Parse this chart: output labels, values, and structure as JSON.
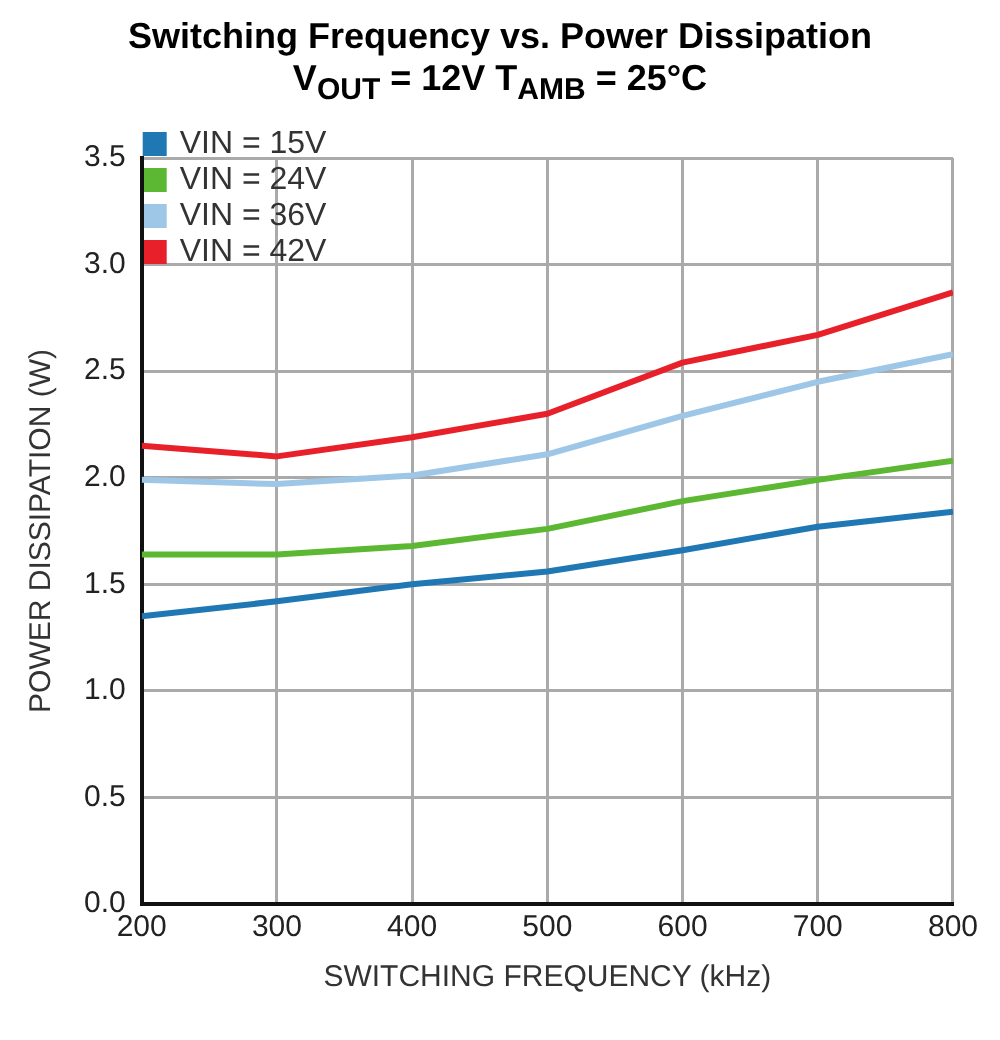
{
  "chart_data": {
    "type": "line",
    "title": "Switching Frequency vs. Power Dissipation",
    "subtitle": "V$_{OUT}$ = 12V T$_{AMB}$ = 25°C",
    "xlabel": "SWITCHING FREQUENCY (kHz)",
    "ylabel": "POWER DISSIPATION (W)",
    "x": [
      200,
      300,
      400,
      500,
      600,
      700,
      800
    ],
    "series": [
      {
        "name": "VIN = 15V",
        "color": "#1f77b4",
        "values": [
          1.35,
          1.42,
          1.5,
          1.56,
          1.66,
          1.77,
          1.84
        ]
      },
      {
        "name": "VIN = 24V",
        "color": "#5cb833",
        "values": [
          1.64,
          1.64,
          1.68,
          1.76,
          1.89,
          1.99,
          2.08
        ]
      },
      {
        "name": "VIN = 36V",
        "color": "#9ec6e6",
        "values": [
          1.99,
          1.97,
          2.01,
          2.11,
          2.29,
          2.45,
          2.58
        ]
      },
      {
        "name": "VIN = 42V",
        "color": "#e8202a",
        "values": [
          2.15,
          2.1,
          2.19,
          2.3,
          2.54,
          2.67,
          2.87
        ]
      }
    ],
    "xlim": [
      200,
      800
    ],
    "xticks": [
      200,
      300,
      400,
      500,
      600,
      700,
      800
    ],
    "ylim": [
      0,
      3.5
    ],
    "yticks": [
      {
        "value": 0,
        "label": "0.0"
      },
      {
        "value": 0.5,
        "label": "0.5"
      },
      {
        "value": 1,
        "label": "1.0"
      },
      {
        "value": 1.5,
        "label": "1.5"
      },
      {
        "value": 2,
        "label": "2.0"
      },
      {
        "value": 2.5,
        "label": "2.5"
      },
      {
        "value": 3,
        "label": "3.0"
      },
      {
        "value": 3.5,
        "label": "3.5"
      }
    ],
    "grid": true,
    "legend": "top left",
    "marker": "none",
    "line_style": "solid"
  }
}
